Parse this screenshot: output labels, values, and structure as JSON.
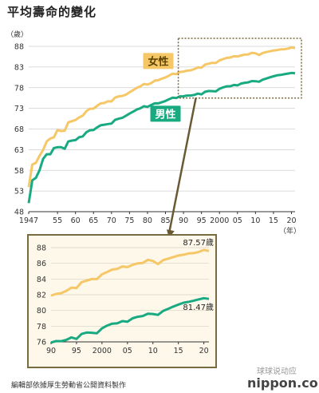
{
  "title": "平均壽命的變化",
  "source": "編輯部依據厚生勞動省公開資料製作",
  "brand": "nippon.com",
  "watermark": "球球说动应",
  "colors": {
    "female": "#f6c766",
    "male": "#19aa82",
    "frame": "#7a6a40",
    "arrow": "#6a5a34"
  },
  "chart_data": [
    {
      "type": "line",
      "title": "",
      "unit_label": "（歲）",
      "x_unit_label": "（年）",
      "xlim": [
        1947,
        2021
      ],
      "ylim": [
        48,
        88
      ],
      "yticks": [
        48,
        53,
        58,
        63,
        68,
        73,
        78,
        83,
        88
      ],
      "xticks": [
        {
          "value": 1947,
          "label": "1947"
        },
        {
          "value": 1955,
          "label": "55"
        },
        {
          "value": 1960,
          "label": "60"
        },
        {
          "value": 1965,
          "label": "65"
        },
        {
          "value": 1970,
          "label": "70"
        },
        {
          "value": 1975,
          "label": "75"
        },
        {
          "value": 1980,
          "label": "80"
        },
        {
          "value": 1985,
          "label": "85"
        },
        {
          "value": 1990,
          "label": "90"
        },
        {
          "value": 1995,
          "label": "95"
        },
        {
          "value": 2000,
          "label": "2000"
        },
        {
          "value": 2005,
          "label": "05"
        },
        {
          "value": 2010,
          "label": "10"
        },
        {
          "value": 2015,
          "label": "15"
        },
        {
          "value": 2020,
          "label": "20"
        }
      ],
      "series": [
        {
          "name": "女性",
          "key": "female",
          "x": [
            1947,
            1948,
            1949,
            1950,
            1951,
            1952,
            1953,
            1954,
            1955,
            1956,
            1957,
            1958,
            1959,
            1960,
            1961,
            1962,
            1963,
            1964,
            1965,
            1966,
            1967,
            1968,
            1969,
            1970,
            1971,
            1972,
            1973,
            1974,
            1975,
            1976,
            1977,
            1978,
            1979,
            1980,
            1981,
            1982,
            1983,
            1984,
            1985,
            1986,
            1987,
            1988,
            1989,
            1990,
            1991,
            1992,
            1993,
            1994,
            1995,
            1996,
            1997,
            1998,
            1999,
            2000,
            2001,
            2002,
            2003,
            2004,
            2005,
            2006,
            2007,
            2008,
            2009,
            2010,
            2011,
            2012,
            2013,
            2014,
            2015,
            2016,
            2017,
            2018,
            2019,
            2020,
            2021
          ],
          "y": [
            53.96,
            59.4,
            59.8,
            61.5,
            62.97,
            65.0,
            65.7,
            66.0,
            67.75,
            67.5,
            67.6,
            69.6,
            69.9,
            70.19,
            70.8,
            71.2,
            72.3,
            72.9,
            72.92,
            73.6,
            74.2,
            74.3,
            74.7,
            74.66,
            75.6,
            75.9,
            76.0,
            76.3,
            76.89,
            77.4,
            77.95,
            78.3,
            78.9,
            78.76,
            79.1,
            79.7,
            79.8,
            80.2,
            80.48,
            80.9,
            81.4,
            81.3,
            81.8,
            81.9,
            82.1,
            82.2,
            82.5,
            82.9,
            82.85,
            83.6,
            83.8,
            84.0,
            83.99,
            84.6,
            84.9,
            85.2,
            85.3,
            85.6,
            85.52,
            85.8,
            86.0,
            86.05,
            86.44,
            86.3,
            85.9,
            86.4,
            86.6,
            86.8,
            86.99,
            87.1,
            87.26,
            87.3,
            87.45,
            87.71,
            87.57
          ]
        },
        {
          "name": "男性",
          "key": "male",
          "x": [
            1947,
            1948,
            1949,
            1950,
            1951,
            1952,
            1953,
            1954,
            1955,
            1956,
            1957,
            1958,
            1959,
            1960,
            1961,
            1962,
            1963,
            1964,
            1965,
            1966,
            1967,
            1968,
            1969,
            1970,
            1971,
            1972,
            1973,
            1974,
            1975,
            1976,
            1977,
            1978,
            1979,
            1980,
            1981,
            1982,
            1983,
            1984,
            1985,
            1986,
            1987,
            1988,
            1989,
            1990,
            1991,
            1992,
            1993,
            1994,
            1995,
            1996,
            1997,
            1998,
            1999,
            2000,
            2001,
            2002,
            2003,
            2004,
            2005,
            2006,
            2007,
            2008,
            2009,
            2010,
            2011,
            2012,
            2013,
            2014,
            2015,
            2016,
            2017,
            2018,
            2019,
            2020,
            2021
          ],
          "y": [
            50.06,
            55.6,
            56.2,
            58.0,
            60.8,
            61.9,
            61.9,
            63.4,
            63.6,
            63.6,
            63.2,
            64.98,
            65.2,
            65.32,
            66.0,
            66.2,
            67.2,
            67.7,
            67.74,
            68.4,
            68.9,
            69.05,
            69.2,
            69.31,
            70.2,
            70.5,
            70.7,
            71.2,
            71.73,
            72.2,
            72.7,
            73.0,
            73.5,
            73.35,
            73.8,
            74.2,
            74.2,
            74.5,
            74.78,
            75.2,
            75.6,
            75.5,
            75.9,
            75.92,
            76.1,
            76.09,
            76.25,
            76.57,
            76.38,
            77.01,
            77.19,
            77.16,
            77.1,
            77.72,
            78.07,
            78.32,
            78.36,
            78.64,
            78.56,
            79.0,
            79.19,
            79.29,
            79.59,
            79.55,
            79.44,
            79.94,
            80.21,
            80.5,
            80.75,
            80.98,
            81.09,
            81.25,
            81.41,
            81.56,
            81.47
          ]
        }
      ],
      "annotations": [
        {
          "text": "女性",
          "series": "female"
        },
        {
          "text": "男性",
          "series": "male"
        }
      ]
    },
    {
      "type": "line",
      "title": "",
      "xlim": [
        1990,
        2021
      ],
      "ylim": [
        76,
        88
      ],
      "yticks": [
        76,
        78,
        80,
        82,
        84,
        86,
        88
      ],
      "xticks": [
        {
          "value": 1990,
          "label": "90"
        },
        {
          "value": 1995,
          "label": "95"
        },
        {
          "value": 2000,
          "label": "2000"
        },
        {
          "value": 2005,
          "label": "05"
        },
        {
          "value": 2010,
          "label": "10"
        },
        {
          "value": 2015,
          "label": "15"
        },
        {
          "value": 2020,
          "label": "20"
        }
      ],
      "series_from_main_start": 1990,
      "end_labels": [
        {
          "text": "87.57歲",
          "series": "female"
        },
        {
          "text": "81.47歲",
          "series": "male"
        }
      ]
    }
  ]
}
